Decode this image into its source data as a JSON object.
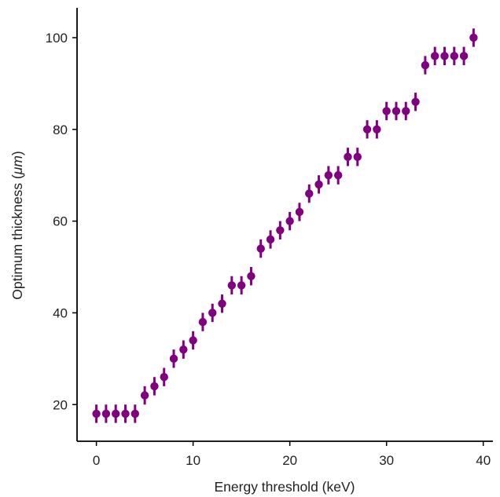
{
  "chart_data": {
    "type": "scatter",
    "title": "",
    "xlabel": "Energy threshold (keV)",
    "ylabel_main": "Optimum thickness (",
    "ylabel_unit": "μm",
    "ylabel_close": ")",
    "xlim": [
      -2,
      41
    ],
    "ylim": [
      12,
      106.5
    ],
    "xticks": [
      0,
      10,
      20,
      30,
      40
    ],
    "yticks": [
      20,
      40,
      60,
      80,
      100
    ],
    "grid": false,
    "legend": "none",
    "color": "#800080",
    "error": 2,
    "x": [
      0,
      1,
      2,
      3,
      4,
      5,
      6,
      7,
      8,
      9,
      10,
      11,
      12,
      13,
      14,
      15,
      16,
      17,
      18,
      19,
      20,
      21,
      22,
      23,
      24,
      25,
      26,
      27,
      28,
      29,
      30,
      31,
      32,
      33,
      34,
      35,
      36,
      37,
      38,
      39
    ],
    "y": [
      18,
      18,
      18,
      18,
      18,
      22,
      24,
      26,
      30,
      32,
      34,
      38,
      40,
      42,
      46,
      46,
      48,
      54,
      56,
      58,
      60,
      62,
      66,
      68,
      70,
      70,
      74,
      74,
      80,
      80,
      84,
      84,
      84,
      86,
      94,
      96,
      96,
      96,
      96,
      100
    ]
  }
}
